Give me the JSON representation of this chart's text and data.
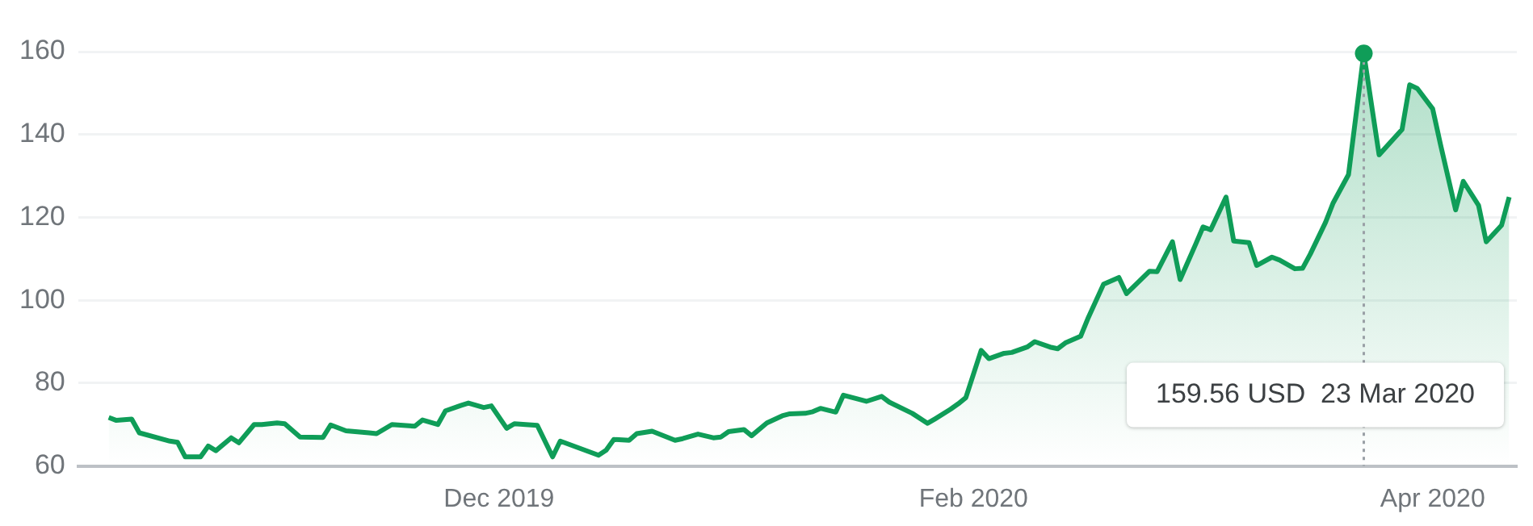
{
  "chart_data": {
    "type": "area",
    "color": "#0f9d58",
    "x": [
      "2019-10-11",
      "2019-10-12",
      "2019-10-14",
      "2019-10-15",
      "2019-10-19",
      "2019-10-20",
      "2019-10-21",
      "2019-10-23",
      "2019-10-24",
      "2019-10-25",
      "2019-10-27",
      "2019-10-28",
      "2019-10-30",
      "2019-10-31",
      "2019-11-02",
      "2019-11-03",
      "2019-11-05",
      "2019-11-08",
      "2019-11-09",
      "2019-11-11",
      "2019-11-14",
      "2019-11-15",
      "2019-11-17",
      "2019-11-20",
      "2019-11-21",
      "2019-11-23",
      "2019-11-24",
      "2019-11-26",
      "2019-11-27",
      "2019-11-29",
      "2019-11-30",
      "2019-12-02",
      "2019-12-03",
      "2019-12-06",
      "2019-12-08",
      "2019-12-09",
      "2019-12-14",
      "2019-12-15",
      "2019-12-16",
      "2019-12-18",
      "2019-12-19",
      "2019-12-21",
      "2019-12-24",
      "2019-12-25",
      "2019-12-27",
      "2019-12-29",
      "2019-12-30",
      "2019-12-31",
      "2020-01-02",
      "2020-01-03",
      "2020-01-05",
      "2020-01-07",
      "2020-01-08",
      "2020-01-10",
      "2020-01-11",
      "2020-01-12",
      "2020-01-14",
      "2020-01-15",
      "2020-01-17",
      "2020-01-18",
      "2020-01-20",
      "2020-01-21",
      "2020-01-24",
      "2020-01-26",
      "2020-01-27",
      "2020-01-29",
      "2020-01-30",
      "2020-01-31",
      "2020-02-02",
      "2020-02-03",
      "2020-02-05",
      "2020-02-06",
      "2020-02-08",
      "2020-02-09",
      "2020-02-11",
      "2020-02-12",
      "2020-02-13",
      "2020-02-15",
      "2020-02-16",
      "2020-02-18",
      "2020-02-20",
      "2020-02-21",
      "2020-02-23",
      "2020-02-24",
      "2020-02-25",
      "2020-02-27",
      "2020-02-28",
      "2020-03-01",
      "2020-03-02",
      "2020-03-03",
      "2020-03-05",
      "2020-03-06",
      "2020-03-08",
      "2020-03-09",
      "2020-03-11",
      "2020-03-12",
      "2020-03-14",
      "2020-03-15",
      "2020-03-16",
      "2020-03-18",
      "2020-03-19",
      "2020-03-21",
      "2020-03-23",
      "2020-03-25",
      "2020-03-28",
      "2020-03-29",
      "2020-03-30",
      "2020-04-01",
      "2020-04-02",
      "2020-04-04",
      "2020-04-05",
      "2020-04-07",
      "2020-04-08",
      "2020-04-10",
      "2020-04-11"
    ],
    "values": [
      71.7,
      71.0,
      71.3,
      68.0,
      66.0,
      65.7,
      62.2,
      62.2,
      64.8,
      63.7,
      66.8,
      65.6,
      70.0,
      70.0,
      70.4,
      70.2,
      67.0,
      66.9,
      69.9,
      68.5,
      68.0,
      67.8,
      70.0,
      69.6,
      71.1,
      70.0,
      73.3,
      74.6,
      75.2,
      74.1,
      74.5,
      69.1,
      70.2,
      69.8,
      62.2,
      66.0,
      62.6,
      63.8,
      66.4,
      66.2,
      67.8,
      68.4,
      66.2,
      66.6,
      67.7,
      66.8,
      67.0,
      68.3,
      68.8,
      67.3,
      70.4,
      72.1,
      72.6,
      72.7,
      73.1,
      73.9,
      73.0,
      77.1,
      76.1,
      75.6,
      76.8,
      75.4,
      72.7,
      70.3,
      71.4,
      73.7,
      75.0,
      76.5,
      87.9,
      85.9,
      87.2,
      87.4,
      88.7,
      90.0,
      88.7,
      88.3,
      89.7,
      91.3,
      95.8,
      103.9,
      105.5,
      101.6,
      105.2,
      107.0,
      106.9,
      114.1,
      105.0,
      113.4,
      117.7,
      117.0,
      124.9,
      114.3,
      113.9,
      108.4,
      110.4,
      109.7,
      107.6,
      107.7,
      111.1,
      118.8,
      123.5,
      130.3,
      159.56,
      135.1,
      141.2,
      152.0,
      151.1,
      146.2,
      137.8,
      121.8,
      128.7,
      122.9,
      114.1,
      118.1,
      124.9
    ],
    "xlim": [
      "2019-10-07",
      "2020-04-12"
    ],
    "xticks": [
      {
        "value": "2019-12-01",
        "label": "Dec 2019"
      },
      {
        "value": "2020-02-01",
        "label": "Feb 2020"
      },
      {
        "value": "2020-04-01",
        "label": "Apr 2020"
      }
    ],
    "ylim": [
      60,
      160
    ],
    "yticks": [
      60,
      80,
      100,
      120,
      140,
      160
    ],
    "grid": "y",
    "legend": false,
    "marker": "none",
    "line_style": "solid",
    "ref_lines": [
      {
        "axis": "x",
        "value": "2020-03-23",
        "color": "#9aa0a6",
        "line_style": "dotted"
      }
    ],
    "annotations": [
      "159.56 USD  23 Mar 2020"
    ]
  }
}
